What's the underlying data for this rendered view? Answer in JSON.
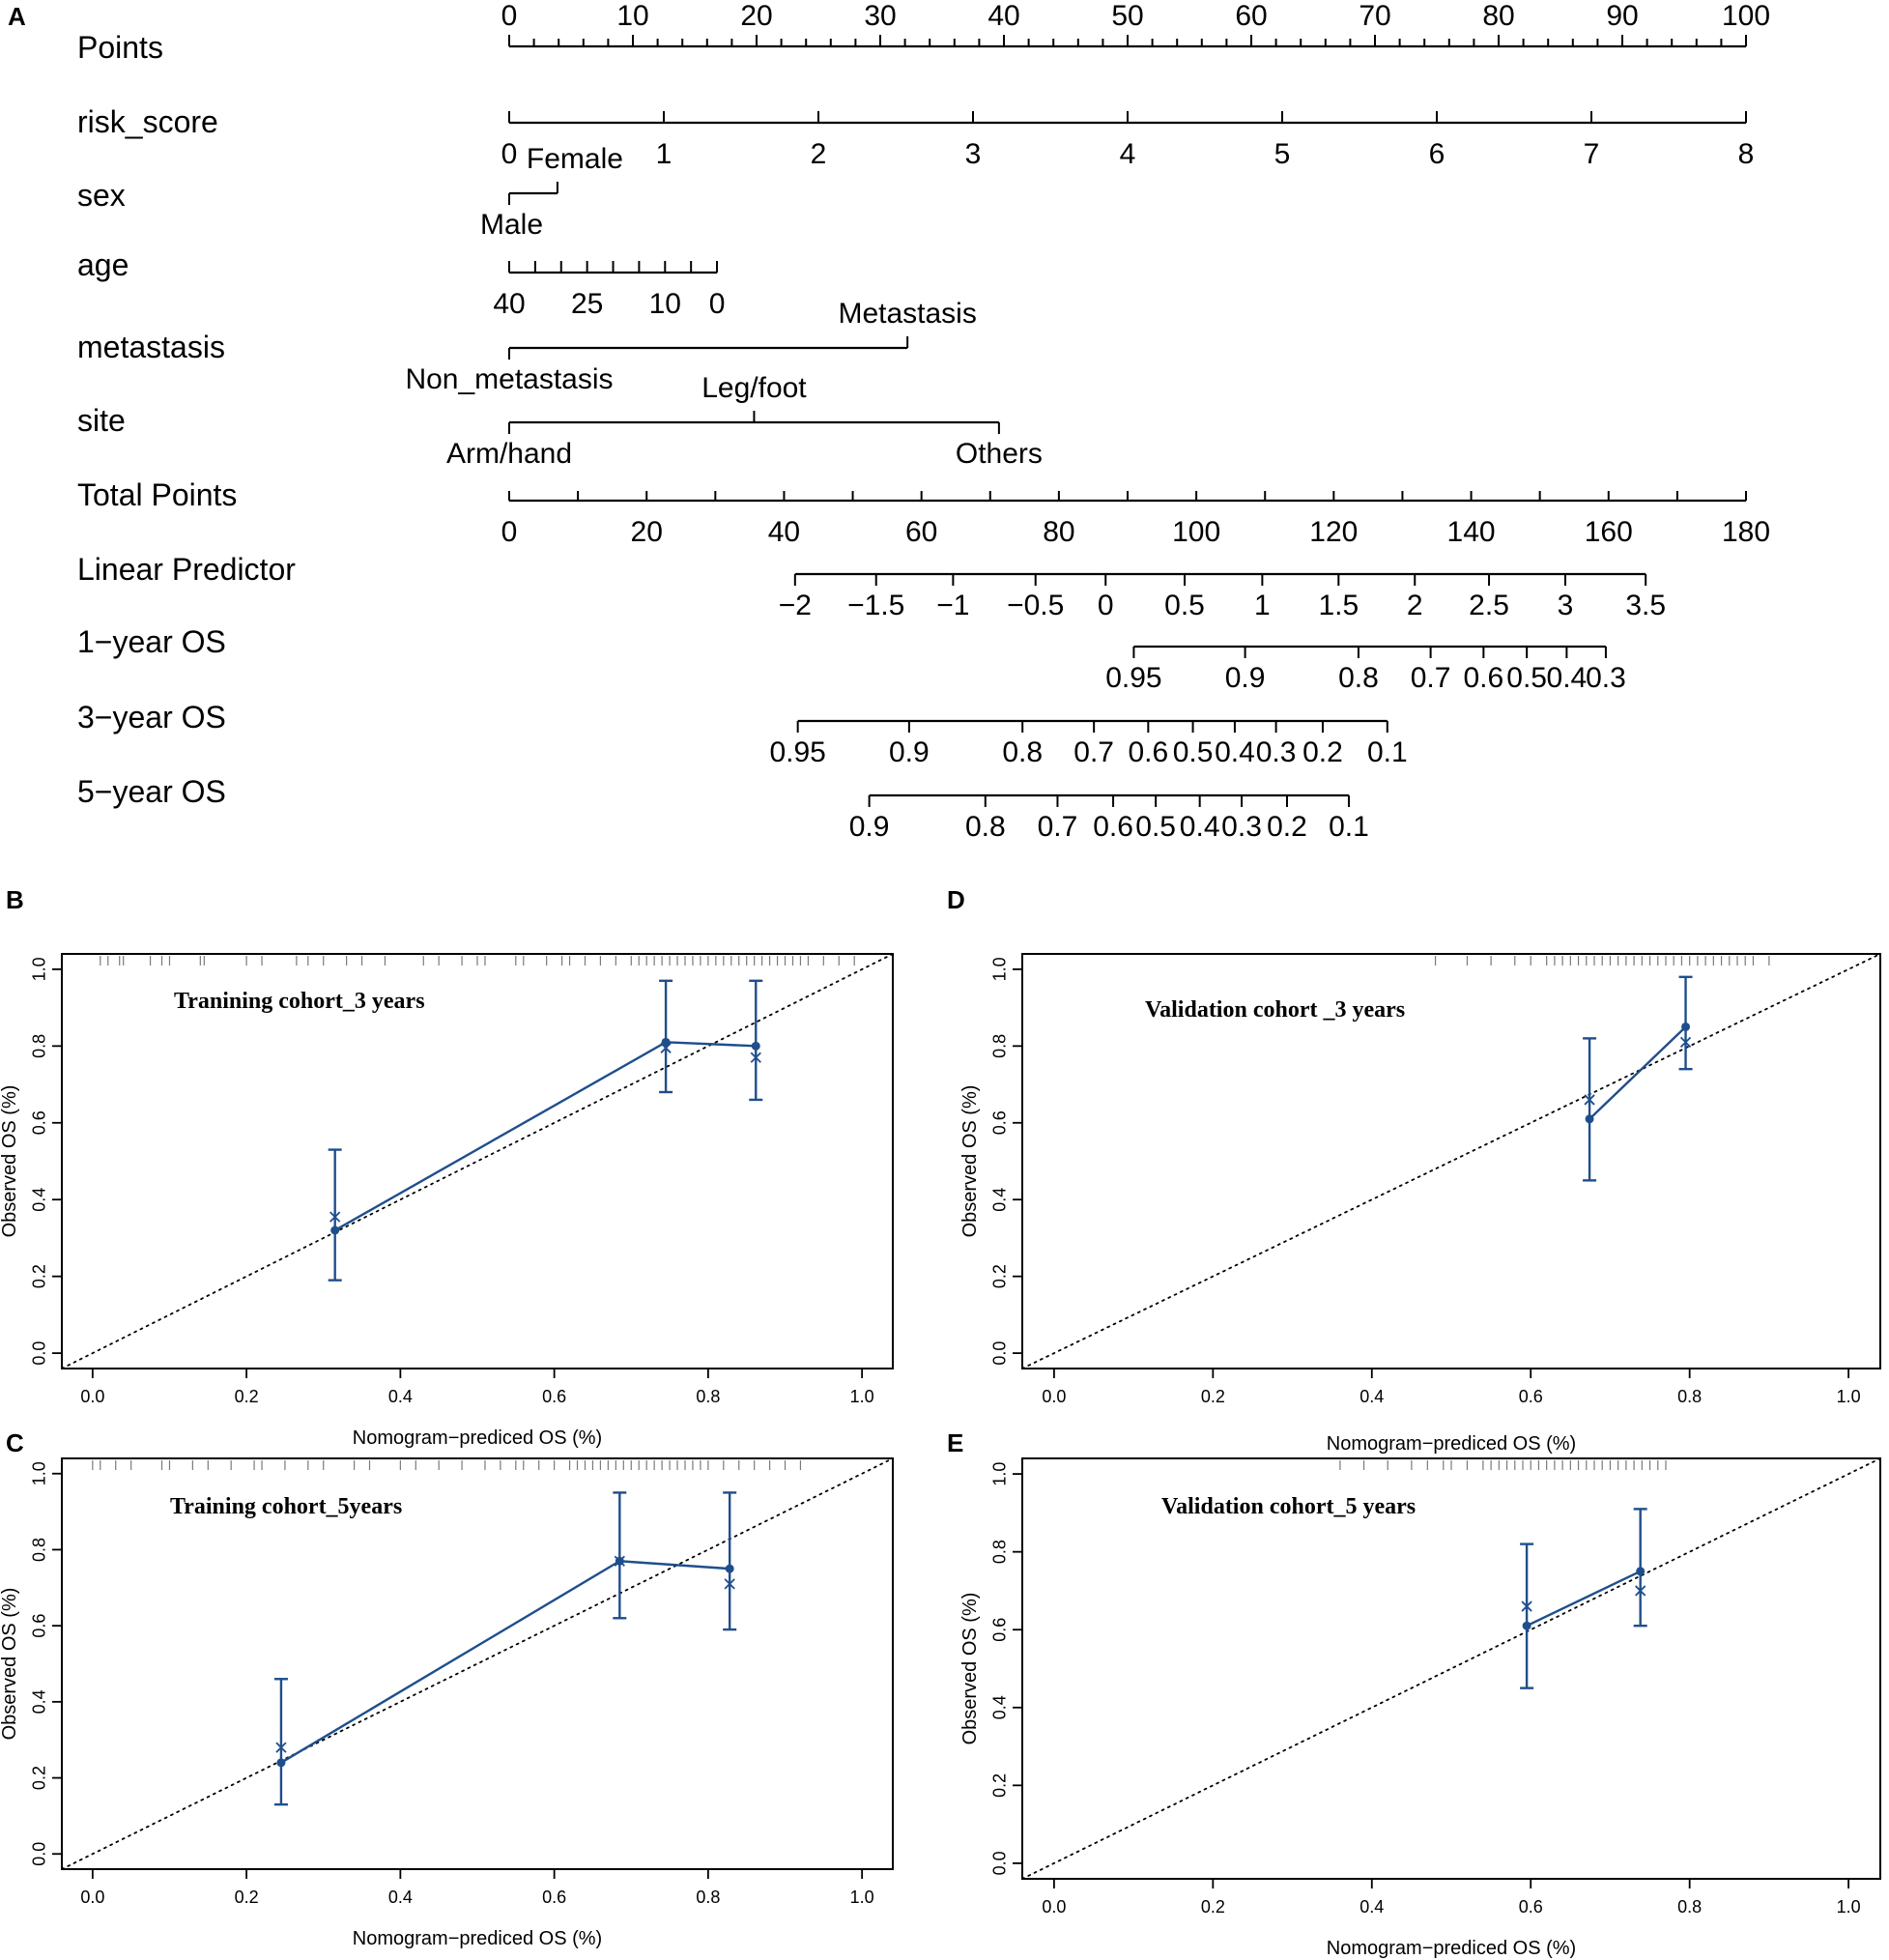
{
  "colors": {
    "ink": "#000000",
    "curve": "#1f4e8c",
    "rug": "#7a7a7a"
  },
  "chart_data": [
    {
      "panel": "A",
      "type": "nomogram",
      "rows": [
        {
          "name": "Points",
          "kind": "points",
          "ticks": [
            {
              "label": "0",
              "points": 0
            },
            {
              "label": "10",
              "points": 10
            },
            {
              "label": "20",
              "points": 20
            },
            {
              "label": "30",
              "points": 30
            },
            {
              "label": "40",
              "points": 40
            },
            {
              "label": "50",
              "points": 50
            },
            {
              "label": "60",
              "points": 60
            },
            {
              "label": "70",
              "points": 70
            },
            {
              "label": "80",
              "points": 80
            },
            {
              "label": "90",
              "points": 90
            },
            {
              "label": "100",
              "points": 100
            }
          ]
        },
        {
          "name": "risk_score",
          "kind": "scale",
          "ticks": [
            {
              "label": "0",
              "points": 0
            },
            {
              "label": "1",
              "points": 12.5
            },
            {
              "label": "2",
              "points": 25
            },
            {
              "label": "3",
              "points": 37.5
            },
            {
              "label": "4",
              "points": 50
            },
            {
              "label": "5",
              "points": 62.5
            },
            {
              "label": "6",
              "points": 75
            },
            {
              "label": "7",
              "points": 87.5
            },
            {
              "label": "8",
              "points": 100
            }
          ]
        },
        {
          "name": "sex",
          "kind": "categorical",
          "ticks": [
            {
              "label": "Male",
              "points": 0,
              "side": "below"
            },
            {
              "label": "Female",
              "points": 3.9,
              "side": "above"
            }
          ]
        },
        {
          "name": "age",
          "kind": "scale",
          "ticks": [
            {
              "label": "40",
              "points": 0
            },
            {
              "label": "",
              "points": 2.1
            },
            {
              "label": "",
              "points": 4.2
            },
            {
              "label": "25",
              "points": 6.3
            },
            {
              "label": "",
              "points": 8.4
            },
            {
              "label": "",
              "points": 10.5
            },
            {
              "label": "10",
              "points": 12.6
            },
            {
              "label": "",
              "points": 14.7
            },
            {
              "label": "0",
              "points": 16.8
            }
          ]
        },
        {
          "name": "metastasis",
          "kind": "categorical",
          "ticks": [
            {
              "label": "Non_metastasis",
              "points": 0,
              "side": "below"
            },
            {
              "label": "Metastasis",
              "points": 32.2,
              "side": "above"
            }
          ]
        },
        {
          "name": "site",
          "kind": "categorical",
          "ticks": [
            {
              "label": "Arm/hand",
              "points": 0,
              "side": "below"
            },
            {
              "label": "Leg/foot",
              "points": 19.8,
              "side": "above"
            },
            {
              "label": "Others",
              "points": 39.6,
              "side": "below"
            }
          ]
        },
        {
          "name": "Total Points",
          "kind": "total",
          "ticks": [
            {
              "label": "0",
              "value": 0
            },
            {
              "label": "20",
              "value": 20
            },
            {
              "label": "40",
              "value": 40
            },
            {
              "label": "60",
              "value": 60
            },
            {
              "label": "80",
              "value": 80
            },
            {
              "label": "100",
              "value": 100
            },
            {
              "label": "120",
              "value": 120
            },
            {
              "label": "140",
              "value": 140
            },
            {
              "label": "160",
              "value": 160
            },
            {
              "label": "180",
              "value": 180
            }
          ]
        },
        {
          "name": "Linear Predictor",
          "kind": "total",
          "ticks": [
            {
              "label": "−2",
              "value": 41.6
            },
            {
              "label": "−1.5",
              "value": 53.4
            },
            {
              "label": "−1",
              "value": 64.6
            },
            {
              "label": "−0.5",
              "value": 76.6
            },
            {
              "label": "0",
              "value": 86.8
            },
            {
              "label": "0.5",
              "value": 98.3
            },
            {
              "label": "1",
              "value": 109.6
            },
            {
              "label": "1.5",
              "value": 120.7
            },
            {
              "label": "2",
              "value": 131.8
            },
            {
              "label": "2.5",
              "value": 142.6
            },
            {
              "label": "3",
              "value": 153.7
            },
            {
              "label": "3.5",
              "value": 165.4
            }
          ]
        },
        {
          "name": "1−year OS",
          "kind": "total",
          "ticks": [
            {
              "label": "0.95",
              "value": 90.9
            },
            {
              "label": "0.9",
              "value": 107.1
            },
            {
              "label": "0.8",
              "value": 123.6
            },
            {
              "label": "0.7",
              "value": 134.1
            },
            {
              "label": "0.6",
              "value": 141.8
            },
            {
              "label": "0.5",
              "value": 148.1
            },
            {
              "label": "0.4",
              "value": 153.9
            },
            {
              "label": "0.3",
              "value": 159.6
            }
          ]
        },
        {
          "name": "3−year OS",
          "kind": "total",
          "ticks": [
            {
              "label": "0.95",
              "value": 42.0
            },
            {
              "label": "0.9",
              "value": 58.2
            },
            {
              "label": "0.8",
              "value": 74.7
            },
            {
              "label": "0.7",
              "value": 85.1
            },
            {
              "label": "0.6",
              "value": 93.0
            },
            {
              "label": "0.5",
              "value": 99.5
            },
            {
              "label": "0.4",
              "value": 105.6
            },
            {
              "label": "0.3",
              "value": 111.6
            },
            {
              "label": "0.2",
              "value": 118.4
            },
            {
              "label": "0.1",
              "value": 127.8
            }
          ]
        },
        {
          "name": "5−year OS",
          "kind": "total",
          "ticks": [
            {
              "label": "0.9",
              "value": 52.4
            },
            {
              "label": "0.8",
              "value": 69.3
            },
            {
              "label": "0.7",
              "value": 79.8
            },
            {
              "label": "0.6",
              "value": 87.9
            },
            {
              "label": "0.5",
              "value": 94.1
            },
            {
              "label": "0.4",
              "value": 100.5
            },
            {
              "label": "0.3",
              "value": 106.6
            },
            {
              "label": "0.2",
              "value": 113.2
            },
            {
              "label": "0.1",
              "value": 122.2
            }
          ]
        }
      ]
    },
    {
      "panel": "B",
      "type": "calibration",
      "title": "Tranining cohort_3 years",
      "xlabel": "Nomogram−prediced OS (%)",
      "ylabel": "Observed OS (%)",
      "xlim": [
        -0.04,
        1.04
      ],
      "ylim": [
        -0.04,
        1.04
      ],
      "xticks": [
        "0.0",
        "0.2",
        "0.4",
        "0.6",
        "0.8",
        "1.0"
      ],
      "yticks": [
        "0.0",
        "0.2",
        "0.4",
        "0.6",
        "0.8",
        "1.0"
      ],
      "points": [
        {
          "x": 0.315,
          "y": 0.32,
          "lower": 0.19,
          "upper": 0.53,
          "corrected": 0.355
        },
        {
          "x": 0.745,
          "y": 0.81,
          "lower": 0.68,
          "upper": 0.97,
          "corrected": 0.795
        },
        {
          "x": 0.862,
          "y": 0.8,
          "lower": 0.66,
          "upper": 0.97,
          "corrected": 0.77
        }
      ],
      "rug": [
        0.01,
        0.02,
        0.035,
        0.04,
        0.075,
        0.09,
        0.1,
        0.14,
        0.145,
        0.2,
        0.22,
        0.265,
        0.28,
        0.3,
        0.33,
        0.35,
        0.38,
        0.43,
        0.45,
        0.48,
        0.5,
        0.51,
        0.55,
        0.56,
        0.59,
        0.61,
        0.62,
        0.64,
        0.66,
        0.68,
        0.7,
        0.71,
        0.72,
        0.73,
        0.74,
        0.75,
        0.76,
        0.77,
        0.78,
        0.79,
        0.8,
        0.81,
        0.82,
        0.83,
        0.84,
        0.85,
        0.86,
        0.87,
        0.88,
        0.89,
        0.9,
        0.91,
        0.92,
        0.93,
        0.95,
        0.97,
        0.99
      ]
    },
    {
      "panel": "D",
      "type": "calibration",
      "title": "Validation cohort _3 years",
      "xlabel": "Nomogram−prediced OS (%)",
      "ylabel": "Observed OS (%)",
      "xlim": [
        -0.04,
        1.04
      ],
      "ylim": [
        -0.04,
        1.04
      ],
      "xticks": [
        "0.0",
        "0.2",
        "0.4",
        "0.6",
        "0.8",
        "1.0"
      ],
      "yticks": [
        "0.0",
        "0.2",
        "0.4",
        "0.6",
        "0.8",
        "1.0"
      ],
      "points": [
        {
          "x": 0.674,
          "y": 0.61,
          "lower": 0.45,
          "upper": 0.82,
          "corrected": 0.66
        },
        {
          "x": 0.795,
          "y": 0.85,
          "lower": 0.74,
          "upper": 0.98,
          "corrected": 0.81
        }
      ],
      "rug": [
        0.48,
        0.52,
        0.55,
        0.58,
        0.6,
        0.62,
        0.63,
        0.64,
        0.65,
        0.66,
        0.67,
        0.68,
        0.69,
        0.7,
        0.71,
        0.72,
        0.73,
        0.74,
        0.75,
        0.76,
        0.77,
        0.78,
        0.79,
        0.8,
        0.81,
        0.82,
        0.83,
        0.84,
        0.85,
        0.86,
        0.87,
        0.88,
        0.9
      ]
    },
    {
      "panel": "C",
      "type": "calibration",
      "title": "Training cohort_5years",
      "xlabel": "Nomogram−prediced OS (%)",
      "ylabel": "Observed OS (%)",
      "xlim": [
        -0.04,
        1.04
      ],
      "ylim": [
        -0.04,
        1.04
      ],
      "xticks": [
        "0.0",
        "0.2",
        "0.4",
        "0.6",
        "0.8",
        "1.0"
      ],
      "yticks": [
        "0.0",
        "0.2",
        "0.4",
        "0.6",
        "0.8",
        "1.0"
      ],
      "points": [
        {
          "x": 0.245,
          "y": 0.24,
          "lower": 0.13,
          "upper": 0.46,
          "corrected": 0.28
        },
        {
          "x": 0.685,
          "y": 0.77,
          "lower": 0.62,
          "upper": 0.95,
          "corrected": 0.77
        },
        {
          "x": 0.828,
          "y": 0.75,
          "lower": 0.59,
          "upper": 0.95,
          "corrected": 0.71
        }
      ],
      "rug": [
        0.0,
        0.01,
        0.03,
        0.05,
        0.09,
        0.1,
        0.13,
        0.15,
        0.18,
        0.21,
        0.22,
        0.25,
        0.28,
        0.3,
        0.34,
        0.36,
        0.4,
        0.42,
        0.45,
        0.48,
        0.51,
        0.53,
        0.55,
        0.56,
        0.58,
        0.6,
        0.62,
        0.63,
        0.64,
        0.65,
        0.66,
        0.67,
        0.68,
        0.69,
        0.7,
        0.71,
        0.72,
        0.73,
        0.74,
        0.75,
        0.76,
        0.77,
        0.78,
        0.79,
        0.8,
        0.82,
        0.84,
        0.86,
        0.88,
        0.9,
        0.92
      ]
    },
    {
      "panel": "E",
      "type": "calibration",
      "title": "Validation cohort_5 years",
      "xlabel": "Nomogram−prediced OS (%)",
      "ylabel": "Observed OS (%)",
      "xlim": [
        -0.04,
        1.04
      ],
      "ylim": [
        -0.04,
        1.04
      ],
      "xticks": [
        "0.0",
        "0.2",
        "0.4",
        "0.6",
        "0.8",
        "1.0"
      ],
      "yticks": [
        "0.0",
        "0.2",
        "0.4",
        "0.6",
        "0.8",
        "1.0"
      ],
      "points": [
        {
          "x": 0.595,
          "y": 0.61,
          "lower": 0.45,
          "upper": 0.82,
          "corrected": 0.66
        },
        {
          "x": 0.738,
          "y": 0.75,
          "lower": 0.61,
          "upper": 0.91,
          "corrected": 0.7
        }
      ],
      "rug": [
        0.36,
        0.39,
        0.42,
        0.45,
        0.47,
        0.49,
        0.5,
        0.52,
        0.54,
        0.55,
        0.56,
        0.57,
        0.58,
        0.59,
        0.6,
        0.61,
        0.62,
        0.63,
        0.64,
        0.65,
        0.66,
        0.67,
        0.68,
        0.69,
        0.7,
        0.71,
        0.72,
        0.73,
        0.74,
        0.75,
        0.76,
        0.77
      ]
    }
  ]
}
